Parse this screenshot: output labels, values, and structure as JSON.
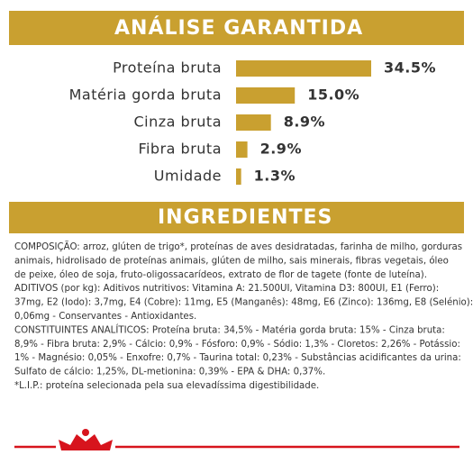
{
  "chart_data": {
    "type": "bar",
    "orientation": "horizontal",
    "title": "ANÁLISE GARANTIDA",
    "categories": [
      "Proteína bruta",
      "Matéria gorda bruta",
      "Cinza bruta",
      "Fibra bruta",
      "Umidade"
    ],
    "values": [
      34.5,
      15.0,
      8.9,
      2.9,
      1.3
    ],
    "value_labels": [
      "34.5%",
      "15.0%",
      "8.9%",
      "2.9%",
      "1.3%"
    ],
    "color": "#c9a030"
  },
  "ingredients": {
    "title": "INGREDIENTES",
    "lines": [
      "COMPOSIÇÃO: arroz, glúten de trigo*, proteínas de aves desidratadas, farinha de milho, gorduras",
      "animais, hidrolisado de proteínas animais, glúten de milho, sais minerais, fibras vegetais, óleo",
      "de peixe, óleo de soja, fruto-oligossacarídeos, extrato de flor de tagete (fonte de luteína).",
      "ADITIVOS (por kg): Aditivos nutritivos: Vitamina A: 21.500UI, Vitamina D3: 800UI, E1 (Ferro):",
      "37mg, E2 (Iodo): 3,7mg, E4 (Cobre): 11mg, E5 (Manganês): 48mg, E6 (Zinco): 136mg, E8 (Selénio):",
      "0,06mg - Conservantes - Antioxidantes.",
      "CONSTITUINTES ANALÍTICOS: Proteína bruta: 34,5% - Matéria gorda bruta: 15% - Cinza bruta:",
      "8,9% - Fibra bruta: 2,9% - Cálcio: 0,9% - Fósforo: 0,9% - Sódio: 1,3% - Cloretos: 2,26% - Potássio:",
      "1% - Magnésio: 0,05% - Enxofre: 0,7% - Taurina total: 0,23% - Substâncias acidificantes da urina:",
      "Sulfato de cálcio: 1,25%, DL-metionina: 0,39% - EPA & DHA: 0,37%.",
      "*L.I.P.: proteína selecionada pela sua elevadíssima digestibilidade."
    ]
  }
}
